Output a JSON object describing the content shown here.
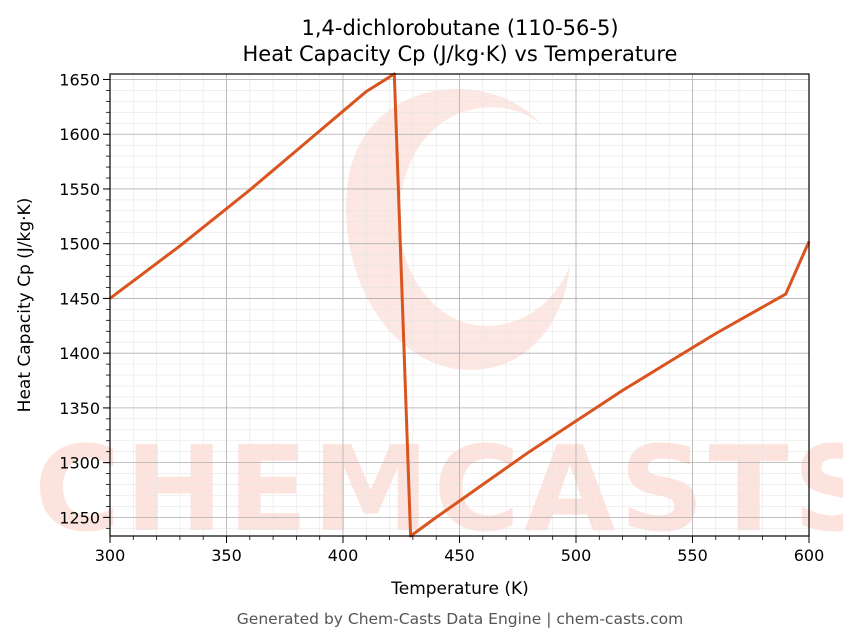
{
  "chart_data": {
    "type": "line",
    "title": "1,4-dichlorobutane (110-56-5)",
    "subtitle": "Heat Capacity Cp (J/kg·K) vs Temperature",
    "xlabel": "Temperature (K)",
    "ylabel": "Heat Capacity Cp (J/kg·K)",
    "xlim": [
      300,
      600
    ],
    "ylim": [
      1233,
      1655
    ],
    "xticks": [
      300,
      350,
      400,
      450,
      500,
      550,
      600
    ],
    "yticks": [
      1250,
      1300,
      1350,
      1400,
      1450,
      1500,
      1550,
      1600,
      1650
    ],
    "grid": true,
    "legend": "none",
    "series": [
      {
        "color": "#d9541e",
        "x": [
          300,
          310,
          320,
          330,
          340,
          350,
          360,
          370,
          380,
          390,
          400,
          410,
          422,
          429,
          440,
          450,
          460,
          470,
          480,
          490,
          500,
          510,
          520,
          530,
          540,
          550,
          560,
          570,
          580,
          590,
          600
        ],
        "y": [
          1450,
          1466,
          1482,
          1498,
          1515,
          1532,
          1549,
          1567,
          1585,
          1603,
          1621,
          1639,
          1655,
          1233,
          1250,
          1265,
          1280,
          1295,
          1310,
          1324,
          1338,
          1352,
          1366,
          1379,
          1392,
          1405,
          1418,
          1430,
          1442,
          1454,
          1502
        ]
      }
    ]
  },
  "watermark": {
    "text": "CHEMCASTS",
    "color": "#fde3dd"
  },
  "footer": "Generated by Chem-Casts Data Engine | chem-casts.com"
}
